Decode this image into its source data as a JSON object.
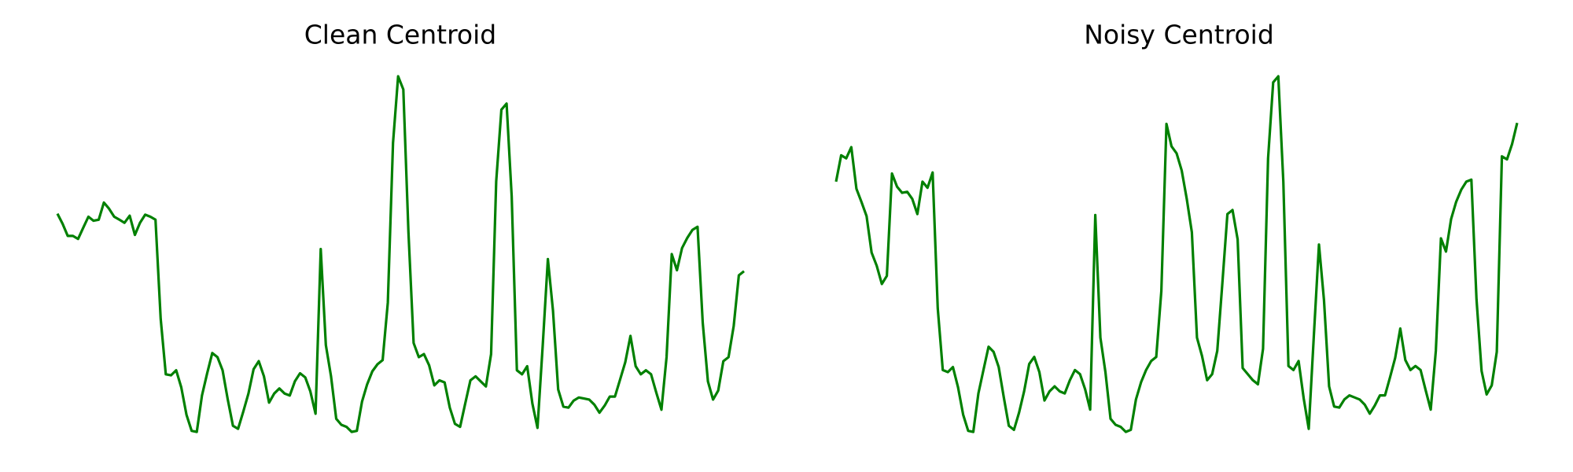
{
  "chart_data": [
    {
      "type": "line",
      "title": "Clean Centroid",
      "color": "#008000",
      "values": [
        228,
        218,
        206,
        206,
        203,
        214,
        225,
        221,
        222,
        239,
        233,
        225,
        222,
        219,
        226,
        207,
        219,
        227,
        225,
        222,
        124,
        69,
        68,
        73,
        56,
        29,
        13,
        12,
        48,
        70,
        90,
        86,
        73,
        44,
        18,
        15,
        32,
        50,
        74,
        82,
        67,
        41,
        50,
        55,
        50,
        48,
        62,
        70,
        66,
        52,
        30,
        193,
        98,
        67,
        25,
        19,
        17,
        12,
        13,
        42,
        59,
        72,
        79,
        83,
        140,
        298,
        364,
        351,
        210,
        100,
        86,
        89,
        78,
        58,
        63,
        61,
        36,
        20,
        17,
        40,
        63,
        67,
        62,
        57,
        89,
        260,
        331,
        337,
        245,
        73,
        69,
        77,
        40,
        16,
        97,
        183,
        132,
        54,
        37,
        36,
        43,
        46,
        45,
        44,
        39,
        31,
        38,
        47,
        47,
        64,
        81,
        107,
        77,
        69,
        73,
        69,
        51,
        34,
        86,
        188,
        172,
        194,
        204,
        212,
        215,
        120,
        62,
        44,
        53,
        82,
        86,
        117,
        167,
        171
      ]
    },
    {
      "type": "line",
      "title": "Noisy Centroid",
      "color": "#008000",
      "values": [
        260,
        286,
        283,
        294,
        253,
        240,
        226,
        190,
        177,
        159,
        167,
        268,
        255,
        249,
        250,
        243,
        228,
        260,
        254,
        269,
        135,
        74,
        72,
        77,
        57,
        30,
        14,
        13,
        51,
        74,
        97,
        92,
        77,
        47,
        19,
        15,
        32,
        53,
        80,
        87,
        72,
        44,
        53,
        58,
        53,
        51,
        64,
        74,
        70,
        55,
        35,
        227,
        106,
        72,
        26,
        20,
        18,
        13,
        15,
        45,
        62,
        74,
        83,
        87,
        152,
        317,
        295,
        288,
        271,
        243,
        210,
        106,
        88,
        64,
        70,
        93,
        160,
        228,
        232,
        203,
        76,
        70,
        64,
        60,
        95,
        283,
        358,
        364,
        260,
        78,
        74,
        83,
        46,
        16,
        108,
        198,
        143,
        58,
        38,
        37,
        45,
        49,
        47,
        45,
        40,
        31,
        39,
        49,
        49,
        67,
        86,
        115,
        84,
        74,
        78,
        74,
        54,
        35,
        93,
        204,
        191,
        223,
        240,
        252,
        260,
        262,
        144,
        73,
        50,
        59,
        92,
        285,
        282,
        297,
        318
      ]
    }
  ]
}
